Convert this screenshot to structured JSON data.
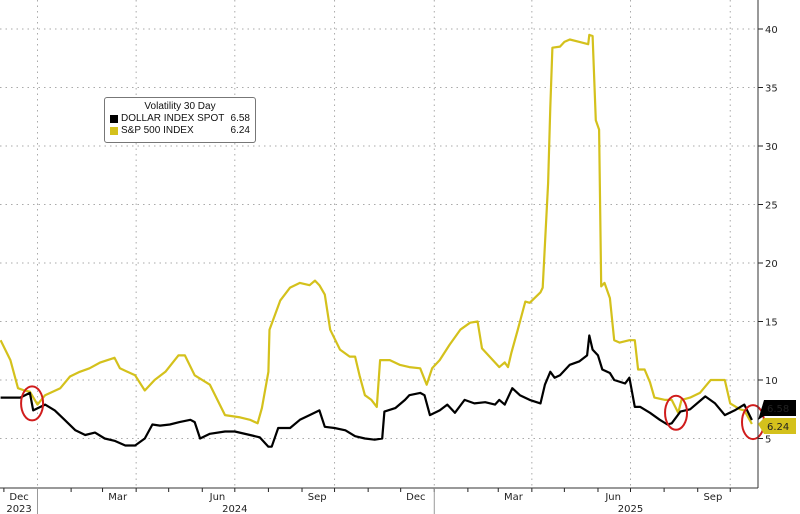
{
  "chart_data": {
    "type": "line",
    "title": "",
    "legend": {
      "title": "Volatility 30 Day",
      "placement": "top-left"
    },
    "xlabel": "",
    "ylabel": "",
    "ylim": [
      0.8,
      42
    ],
    "y_axis_side": "right",
    "yticks": [
      "5",
      "10",
      "15",
      "20",
      "25",
      "30",
      "35",
      "40"
    ],
    "xtick_months": [
      "Dec",
      "Mar",
      "Jun",
      "Sep",
      "Dec",
      "Mar",
      "Jun",
      "Sep"
    ],
    "xtick_years": [
      "2023",
      "2024",
      "2025"
    ],
    "grid": true,
    "series": [
      {
        "name": "DOLLAR INDEX SPOT",
        "last_value": "6.58",
        "color": "#000000",
        "points": [
          [
            "2023-11-28",
            8.5
          ],
          [
            "2023-12-07",
            8.5
          ],
          [
            "2023-12-16",
            8.5
          ],
          [
            "2023-12-25",
            8.9
          ],
          [
            "2023-12-28",
            7.4
          ],
          [
            "2024-01-08",
            7.9
          ],
          [
            "2024-01-17",
            7.4
          ],
          [
            "2024-01-26",
            6.6
          ],
          [
            "2024-02-05",
            5.7
          ],
          [
            "2024-02-14",
            5.3
          ],
          [
            "2024-02-23",
            5.5
          ],
          [
            "2024-03-03",
            5.0
          ],
          [
            "2024-03-12",
            4.8
          ],
          [
            "2024-03-22",
            4.4
          ],
          [
            "2024-03-31",
            4.4
          ],
          [
            "2024-04-09",
            5.0
          ],
          [
            "2024-04-16",
            6.2
          ],
          [
            "2024-04-23",
            6.1
          ],
          [
            "2024-05-02",
            6.2
          ],
          [
            "2024-05-11",
            6.4
          ],
          [
            "2024-05-21",
            6.6
          ],
          [
            "2024-05-25",
            6.4
          ],
          [
            "2024-05-30",
            5.0
          ],
          [
            "2024-06-08",
            5.4
          ],
          [
            "2024-06-22",
            5.6
          ],
          [
            "2024-07-01",
            5.6
          ],
          [
            "2024-07-15",
            5.3
          ],
          [
            "2024-07-24",
            5.1
          ],
          [
            "2024-08-01",
            4.3
          ],
          [
            "2024-08-04",
            4.3
          ],
          [
            "2024-08-10",
            5.9
          ],
          [
            "2024-08-21",
            5.9
          ],
          [
            "2024-08-30",
            6.6
          ],
          [
            "2024-09-08",
            7.0
          ],
          [
            "2024-09-17",
            7.4
          ],
          [
            "2024-09-22",
            6.0
          ],
          [
            "2024-10-01",
            5.9
          ],
          [
            "2024-10-11",
            5.7
          ],
          [
            "2024-10-20",
            5.2
          ],
          [
            "2024-10-29",
            5.0
          ],
          [
            "2024-11-07",
            4.9
          ],
          [
            "2024-11-14",
            5.0
          ],
          [
            "2024-11-16",
            7.3
          ],
          [
            "2024-11-26",
            7.6
          ],
          [
            "2024-12-05",
            8.3
          ],
          [
            "2024-12-09",
            8.7
          ],
          [
            "2024-12-19",
            8.9
          ],
          [
            "2024-12-23",
            8.7
          ],
          [
            "2024-12-28",
            7.0
          ],
          [
            "2025-01-06",
            7.4
          ],
          [
            "2025-01-13",
            7.9
          ],
          [
            "2025-01-20",
            7.2
          ],
          [
            "2025-01-29",
            8.3
          ],
          [
            "2025-02-07",
            8.0
          ],
          [
            "2025-02-17",
            8.1
          ],
          [
            "2025-02-26",
            7.9
          ],
          [
            "2025-03-02",
            8.3
          ],
          [
            "2025-03-07",
            7.9
          ],
          [
            "2025-03-14",
            9.3
          ],
          [
            "2025-03-21",
            8.7
          ],
          [
            "2025-03-30",
            8.3
          ],
          [
            "2025-04-09",
            8.0
          ],
          [
            "2025-04-13",
            9.6
          ],
          [
            "2025-04-18",
            10.7
          ],
          [
            "2025-04-22",
            10.2
          ],
          [
            "2025-04-27",
            10.4
          ],
          [
            "2025-05-06",
            11.3
          ],
          [
            "2025-05-15",
            11.6
          ],
          [
            "2025-05-22",
            12.1
          ],
          [
            "2025-05-24",
            13.8
          ],
          [
            "2025-05-27",
            12.6
          ],
          [
            "2025-06-01",
            12.1
          ],
          [
            "2025-06-05",
            10.9
          ],
          [
            "2025-06-12",
            10.6
          ],
          [
            "2025-06-16",
            10.0
          ],
          [
            "2025-06-26",
            9.7
          ],
          [
            "2025-06-30",
            10.2
          ],
          [
            "2025-07-05",
            7.7
          ],
          [
            "2025-07-10",
            7.7
          ],
          [
            "2025-07-19",
            7.2
          ],
          [
            "2025-07-28",
            6.6
          ],
          [
            "2025-08-04",
            6.2
          ],
          [
            "2025-08-08",
            6.3
          ],
          [
            "2025-08-16",
            7.3
          ],
          [
            "2025-08-25",
            7.5
          ],
          [
            "2025-09-08",
            8.6
          ],
          [
            "2025-09-17",
            8.0
          ],
          [
            "2025-09-26",
            7.0
          ],
          [
            "2025-10-05",
            7.4
          ],
          [
            "2025-10-14",
            7.9
          ],
          [
            "2025-10-21",
            6.58
          ]
        ]
      },
      {
        "name": "S&P 500 INDEX",
        "last_value": "6.24",
        "color": "#d4c11c",
        "points": [
          [
            "2023-11-28",
            13.4
          ],
          [
            "2023-12-07",
            11.7
          ],
          [
            "2023-12-14",
            9.3
          ],
          [
            "2023-12-20",
            9.1
          ],
          [
            "2023-12-25",
            9.0
          ],
          [
            "2024-01-01",
            7.9
          ],
          [
            "2024-01-08",
            8.7
          ],
          [
            "2024-01-22",
            9.3
          ],
          [
            "2024-01-31",
            10.3
          ],
          [
            "2024-02-09",
            10.7
          ],
          [
            "2024-02-18",
            11.0
          ],
          [
            "2024-02-28",
            11.5
          ],
          [
            "2024-03-12",
            11.9
          ],
          [
            "2024-03-17",
            11.0
          ],
          [
            "2024-03-31",
            10.4
          ],
          [
            "2024-04-09",
            9.1
          ],
          [
            "2024-04-18",
            10.0
          ],
          [
            "2024-04-28",
            10.7
          ],
          [
            "2024-05-10",
            12.1
          ],
          [
            "2024-05-16",
            12.1
          ],
          [
            "2024-05-25",
            10.4
          ],
          [
            "2024-06-08",
            9.6
          ],
          [
            "2024-06-22",
            7.0
          ],
          [
            "2024-07-06",
            6.8
          ],
          [
            "2024-07-15",
            6.6
          ],
          [
            "2024-07-22",
            6.3
          ],
          [
            "2024-07-26",
            7.6
          ],
          [
            "2024-08-01",
            10.7
          ],
          [
            "2024-08-02",
            14.3
          ],
          [
            "2024-08-12",
            16.8
          ],
          [
            "2024-08-21",
            17.9
          ],
          [
            "2024-08-30",
            18.3
          ],
          [
            "2024-09-08",
            18.1
          ],
          [
            "2024-09-13",
            18.5
          ],
          [
            "2024-09-17",
            18.1
          ],
          [
            "2024-09-22",
            17.3
          ],
          [
            "2024-09-27",
            14.3
          ],
          [
            "2024-10-06",
            12.6
          ],
          [
            "2024-10-15",
            12.0
          ],
          [
            "2024-10-20",
            12.0
          ],
          [
            "2024-10-24",
            10.4
          ],
          [
            "2024-10-29",
            8.7
          ],
          [
            "2024-11-04",
            8.3
          ],
          [
            "2024-11-09",
            7.7
          ],
          [
            "2024-11-12",
            11.7
          ],
          [
            "2024-11-21",
            11.7
          ],
          [
            "2024-11-30",
            11.3
          ],
          [
            "2024-12-09",
            11.1
          ],
          [
            "2024-12-19",
            11.0
          ],
          [
            "2024-12-25",
            9.6
          ],
          [
            "2024-12-30",
            11.0
          ],
          [
            "2025-01-06",
            11.7
          ],
          [
            "2025-01-15",
            13.0
          ],
          [
            "2025-01-25",
            14.3
          ],
          [
            "2025-02-03",
            14.9
          ],
          [
            "2025-02-10",
            15.0
          ],
          [
            "2025-02-14",
            12.7
          ],
          [
            "2025-02-21",
            12.0
          ],
          [
            "2025-03-02",
            11.1
          ],
          [
            "2025-03-07",
            11.5
          ],
          [
            "2025-03-10",
            11.1
          ],
          [
            "2025-03-13",
            12.3
          ],
          [
            "2025-03-19",
            14.3
          ],
          [
            "2025-03-26",
            16.7
          ],
          [
            "2025-03-30",
            16.6
          ],
          [
            "2025-04-09",
            17.5
          ],
          [
            "2025-04-11",
            17.9
          ],
          [
            "2025-04-16",
            26.8
          ],
          [
            "2025-04-18",
            33.3
          ],
          [
            "2025-04-20",
            38.4
          ],
          [
            "2025-04-27",
            38.5
          ],
          [
            "2025-05-01",
            38.9
          ],
          [
            "2025-05-06",
            39.1
          ],
          [
            "2025-05-15",
            38.9
          ],
          [
            "2025-05-23",
            38.7
          ],
          [
            "2025-05-24",
            39.5
          ],
          [
            "2025-05-27",
            39.4
          ],
          [
            "2025-05-30",
            32.2
          ],
          [
            "2025-06-02",
            31.4
          ],
          [
            "2025-06-04",
            18.0
          ],
          [
            "2025-06-07",
            18.3
          ],
          [
            "2025-06-12",
            17.0
          ],
          [
            "2025-06-16",
            13.4
          ],
          [
            "2025-06-21",
            13.2
          ],
          [
            "2025-06-30",
            13.4
          ],
          [
            "2025-07-05",
            13.4
          ],
          [
            "2025-07-08",
            10.9
          ],
          [
            "2025-07-14",
            10.9
          ],
          [
            "2025-07-19",
            9.8
          ],
          [
            "2025-07-23",
            8.5
          ],
          [
            "2025-08-02",
            8.3
          ],
          [
            "2025-08-08",
            8.3
          ],
          [
            "2025-08-14",
            7.2
          ],
          [
            "2025-08-17",
            8.3
          ],
          [
            "2025-08-25",
            8.5
          ],
          [
            "2025-09-03",
            8.9
          ],
          [
            "2025-09-13",
            10.0
          ],
          [
            "2025-09-26",
            10.0
          ],
          [
            "2025-10-01",
            8.0
          ],
          [
            "2025-10-10",
            7.5
          ],
          [
            "2025-10-14",
            7.4
          ],
          [
            "2025-10-21",
            6.24
          ]
        ]
      }
    ],
    "annotations": [
      {
        "type": "circle",
        "color": "#d01c1c",
        "date": "2023-12-27",
        "value": 8.0
      },
      {
        "type": "circle",
        "color": "#d01c1c",
        "date": "2025-08-12",
        "value": 7.2
      },
      {
        "type": "circle",
        "color": "#d01c1c",
        "date": "2025-10-22",
        "value": 6.4
      }
    ]
  }
}
